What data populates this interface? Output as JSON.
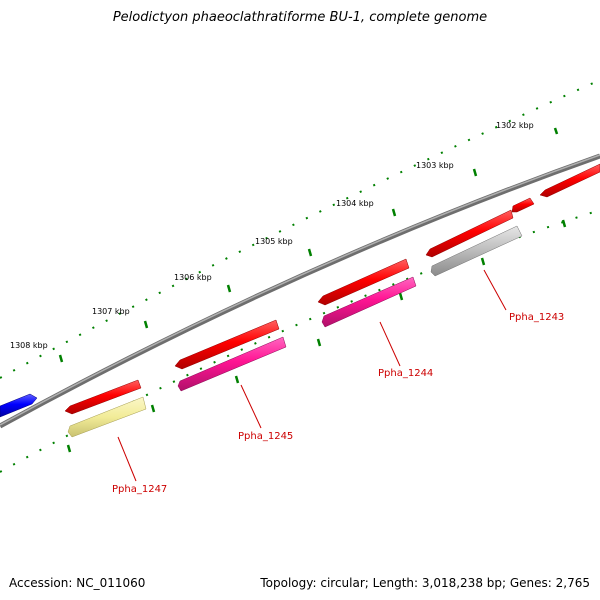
{
  "title": "Pelodictyon phaeoclathratiforme BU-1, complete genome",
  "footer": {
    "accession": "Accession: NC_011060",
    "topology": "Topology: circular; Length: 3,018,238 bp; Genes: 2,765"
  },
  "ticks": [
    "1302 kbp",
    "1303 kbp",
    "1304 kbp",
    "1305 kbp",
    "1306 kbp",
    "1307 kbp",
    "1308 kbp"
  ],
  "genes": [
    "Ppha_1243",
    "Ppha_1244",
    "Ppha_1245",
    "Ppha_1247"
  ],
  "colors": {
    "backbone": "#808080",
    "cds": "#ff0000",
    "rna": "#ff1493",
    "pseudo": "#c0c0c0",
    "hypothetical": "#f2ec98",
    "other": "#0000ff",
    "tick": "#008000",
    "label": "#cc0000"
  }
}
